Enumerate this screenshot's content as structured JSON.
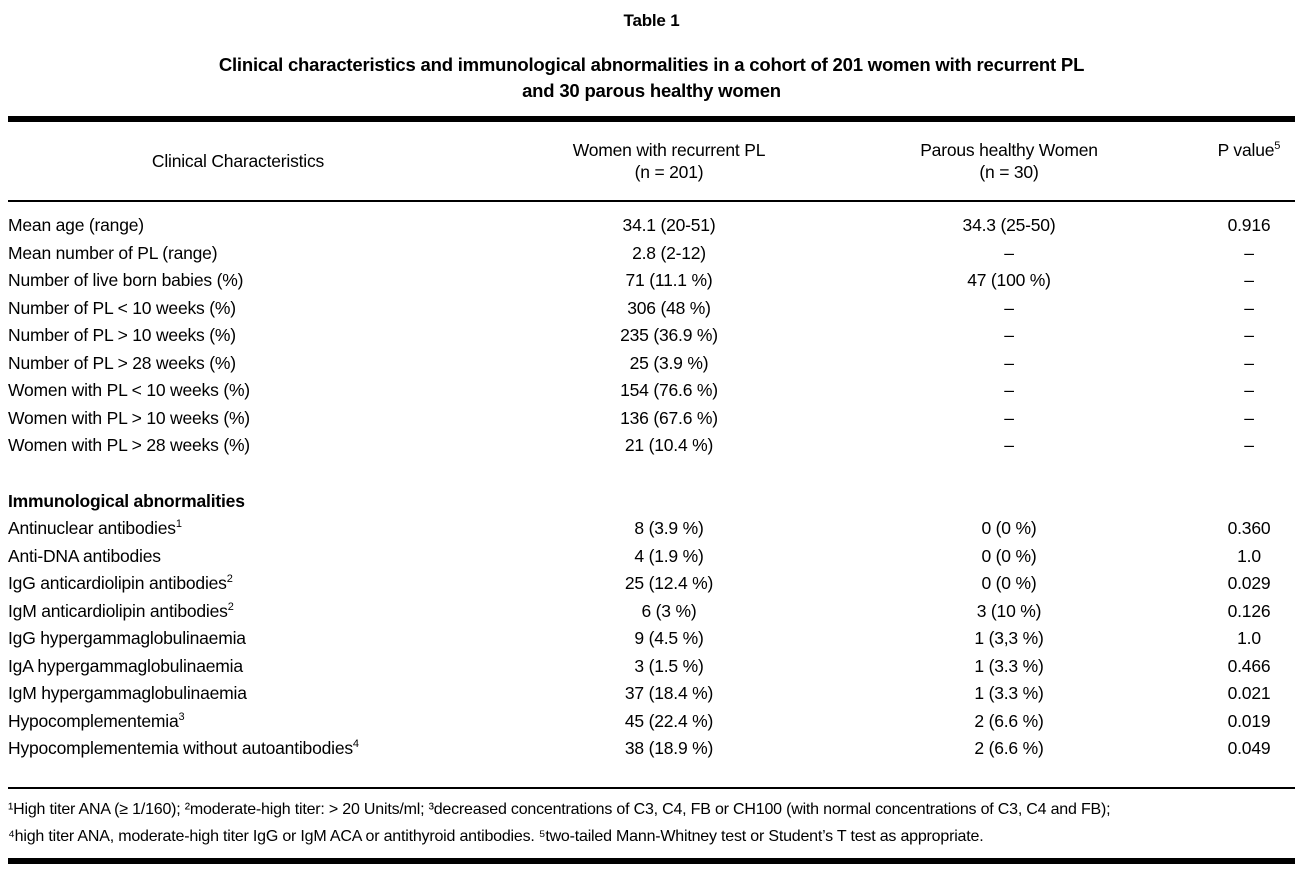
{
  "document": {
    "title": "Table 1",
    "subtitle_line1": "Clinical characteristics and immunological abnormalities in a cohort of 201 women with recurrent PL",
    "subtitle_line2": "and 30 parous healthy women"
  },
  "table": {
    "columns": {
      "characteristics": "Clinical Characteristics",
      "recurrent_label": "Women with recurrent PL",
      "recurrent_sub": "(n = 201)",
      "healthy_label": "Parous healthy Women",
      "healthy_sub": "(n = 30)",
      "p_label": "P value",
      "p_sup": "5"
    },
    "clinical_rows": [
      {
        "label": "Mean age (range)",
        "sup": "",
        "recurrent": "34.1 (20-51)",
        "healthy": "34.3 (25-50)",
        "p": "0.916"
      },
      {
        "label": "Mean number of PL (range)",
        "sup": "",
        "recurrent": "2.8 (2-12)",
        "healthy": "–",
        "p": "–"
      },
      {
        "label": "Number of live born babies (%)",
        "sup": "",
        "recurrent": "71 (11.1 %)",
        "healthy": "47 (100 %)",
        "p": "–"
      },
      {
        "label": "Number of PL < 10 weeks (%)",
        "sup": "",
        "recurrent": "306 (48 %)",
        "healthy": "–",
        "p": "–"
      },
      {
        "label": "Number of PL > 10 weeks (%)",
        "sup": "",
        "recurrent": "235 (36.9 %)",
        "healthy": "–",
        "p": "–"
      },
      {
        "label": "Number of PL > 28 weeks (%)",
        "sup": "",
        "recurrent": "25 (3.9 %)",
        "healthy": "–",
        "p": "–"
      },
      {
        "label": "Women with PL < 10 weeks (%)",
        "sup": "",
        "recurrent": "154 (76.6 %)",
        "healthy": "–",
        "p": "–"
      },
      {
        "label": "Women with PL > 10 weeks (%)",
        "sup": "",
        "recurrent": "136 (67.6 %)",
        "healthy": "–",
        "p": "–"
      },
      {
        "label": "Women with PL > 28 weeks (%)",
        "sup": "",
        "recurrent": "21 (10.4 %)",
        "healthy": "–",
        "p": "–"
      }
    ],
    "section_header": "Immunological abnormalities",
    "immunological_rows": [
      {
        "label": "Antinuclear antibodies",
        "sup": "1",
        "recurrent": "8 (3.9 %)",
        "healthy": "0 (0 %)",
        "p": "0.360"
      },
      {
        "label": "Anti-DNA antibodies",
        "sup": "",
        "recurrent": "4 (1.9 %)",
        "healthy": "0 (0 %)",
        "p": "1.0"
      },
      {
        "label": "IgG anticardiolipin antibodies",
        "sup": "2",
        "recurrent": "25 (12.4 %)",
        "healthy": "0 (0 %)",
        "p": "0.029"
      },
      {
        "label": "IgM anticardiolipin antibodies",
        "sup": "2",
        "recurrent": "6 (3 %)",
        "healthy": "3 (10 %)",
        "p": "0.126"
      },
      {
        "label": "IgG hypergammaglobulinaemia",
        "sup": "",
        "recurrent": "9 (4.5 %)",
        "healthy": "1 (3,3 %)",
        "p": "1.0"
      },
      {
        "label": "IgA hypergammaglobulinaemia",
        "sup": "",
        "recurrent": "3 (1.5 %)",
        "healthy": "1 (3.3 %)",
        "p": "0.466"
      },
      {
        "label": "IgM hypergammaglobulinaemia",
        "sup": "",
        "recurrent": "37 (18.4 %)",
        "healthy": "1 (3.3 %)",
        "p": "0.021"
      },
      {
        "label": "Hypocomplementemia",
        "sup": "3",
        "recurrent": "45 (22.4 %)",
        "healthy": "2 (6.6 %)",
        "p": "0.019"
      },
      {
        "label": "Hypocomplementemia without autoantibodies",
        "sup": "4",
        "recurrent": "38 (18.9 %)",
        "healthy": "2 (6.6 %)",
        "p": "0.049"
      }
    ]
  },
  "footnotes": {
    "line1": "¹High titer ANA (≥ 1/160); ²moderate-high titer: > 20 Units/ml; ³decreased concentrations of C3, C4, FB or CH100 (with normal concentrations of C3, C4 and FB);",
    "line2": "⁴high titer ANA, moderate-high titer IgG or IgM ACA or antithyroid antibodies. ⁵two-tailed Mann-Whitney test or Student’s T test as appropriate."
  }
}
